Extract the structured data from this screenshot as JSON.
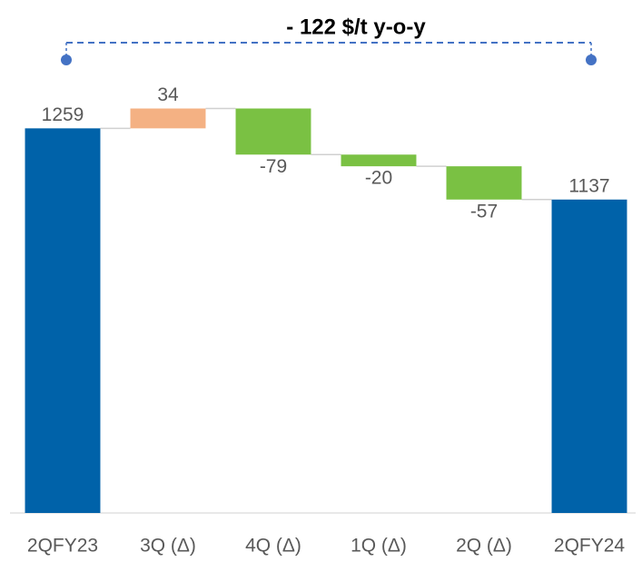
{
  "chart_data": {
    "type": "waterfall",
    "annotation": "- 122 $/t y-o-y",
    "categories": [
      "2QFY23",
      "3Q (Δ)",
      "4Q (Δ)",
      "1Q (Δ)",
      "2Q (Δ)",
      "2QFY24"
    ],
    "values": [
      1259,
      34,
      -79,
      -20,
      -57,
      1137
    ],
    "measure": [
      "total",
      "relative",
      "relative",
      "relative",
      "relative",
      "total"
    ],
    "colors": {
      "total": "#0062a9",
      "increase": "#f4b183",
      "decrease": "#7ac143"
    },
    "ylim": [
      600,
      1300
    ]
  }
}
